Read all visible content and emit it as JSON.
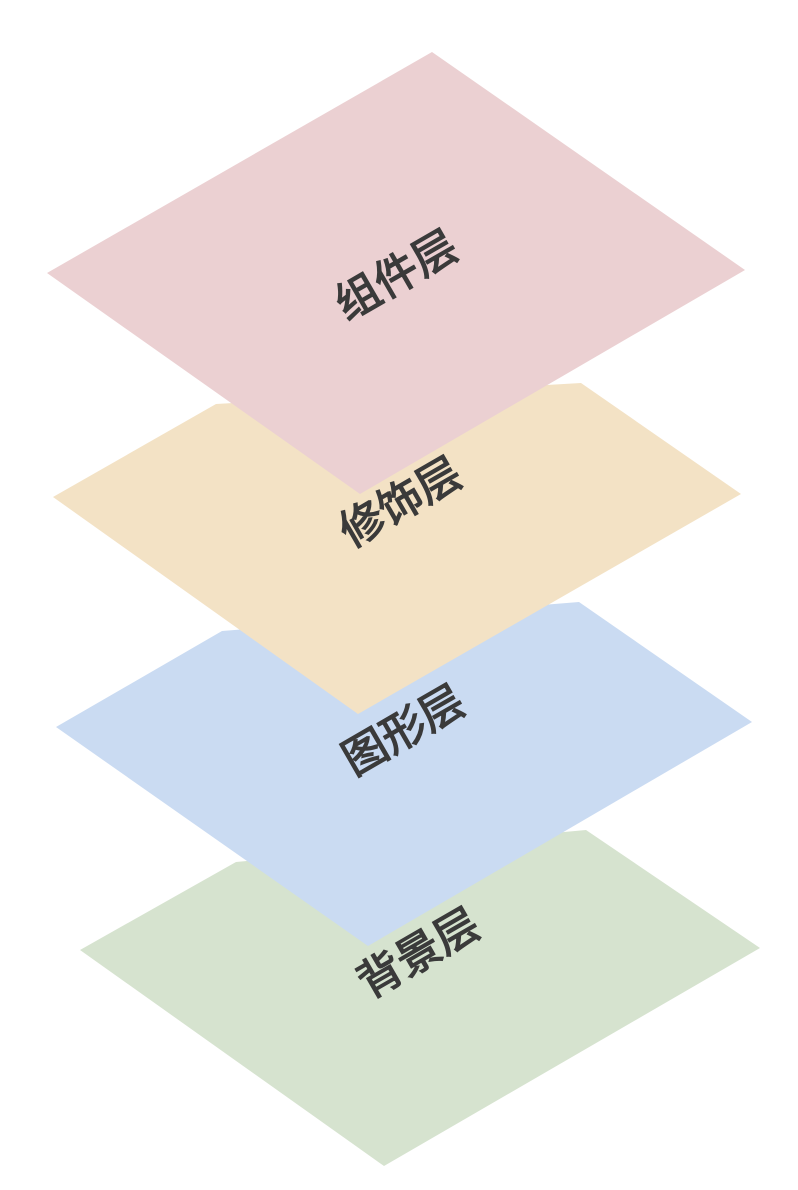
{
  "layers": [
    {
      "key": "background",
      "label": "背景层",
      "color": "#d6e3cf"
    },
    {
      "key": "graphics",
      "label": "图形层",
      "color": "#cadbf2"
    },
    {
      "key": "decoration",
      "label": "修饰层",
      "color": "#f3e2c5"
    },
    {
      "key": "component",
      "label": "组件层",
      "color": "#ebd0d2"
    }
  ],
  "label_color": "#3a3a3a"
}
